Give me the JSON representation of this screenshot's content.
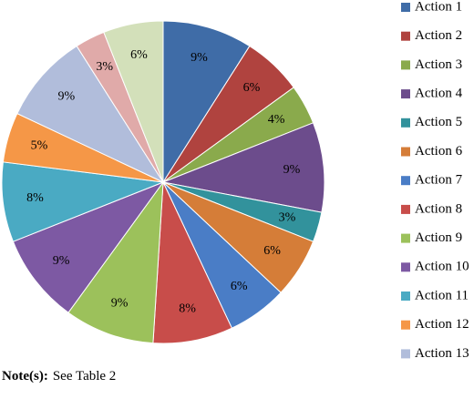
{
  "chart_data": {
    "type": "pie",
    "categories": [
      "Action 1",
      "Action 2",
      "Action 3",
      "Action 4",
      "Action 5",
      "Action 6",
      "Action 7",
      "Action 8",
      "Action 9",
      "Action 10",
      "Action 11",
      "Action 12",
      "Action 13",
      null,
      null
    ],
    "values": [
      9,
      6,
      4,
      9,
      3,
      6,
      6,
      8,
      9,
      9,
      8,
      5,
      9,
      3,
      6
    ],
    "value_labels": [
      "9%",
      "6%",
      "4%",
      "9%",
      "3%",
      "6%",
      "6%",
      "8%",
      "9%",
      "9%",
      "8%",
      "5%",
      "9%",
      "3%",
      "6%"
    ],
    "colors": [
      "#3f6ca7",
      "#b0433f",
      "#8aaa4c",
      "#6c4c8c",
      "#32929c",
      "#d57d38",
      "#4a7dc6",
      "#c84d4a",
      "#9cc15b",
      "#7d59a3",
      "#4aaac3",
      "#f59747",
      "#b1bddb",
      "#e0aaa9",
      "#d3e0ba"
    ],
    "legend": "right"
  },
  "note": {
    "label": "Note(s):",
    "text": "See Table 2"
  }
}
